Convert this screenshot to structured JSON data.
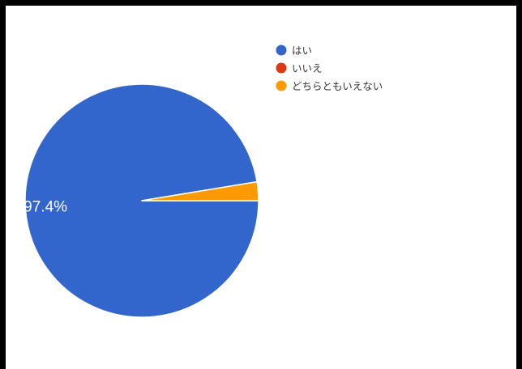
{
  "chart_data": {
    "type": "pie",
    "title": "",
    "slices": [
      {
        "label": "はい",
        "value": 97.4,
        "color": "#3366cc",
        "data_label": "97.4%"
      },
      {
        "label": "いいえ",
        "value": 0.0,
        "color": "#dc3912",
        "data_label": ""
      },
      {
        "label": "どちらともいえない",
        "value": 2.6,
        "color": "#ff9900",
        "data_label": ""
      }
    ],
    "legend_position": "top-right"
  }
}
